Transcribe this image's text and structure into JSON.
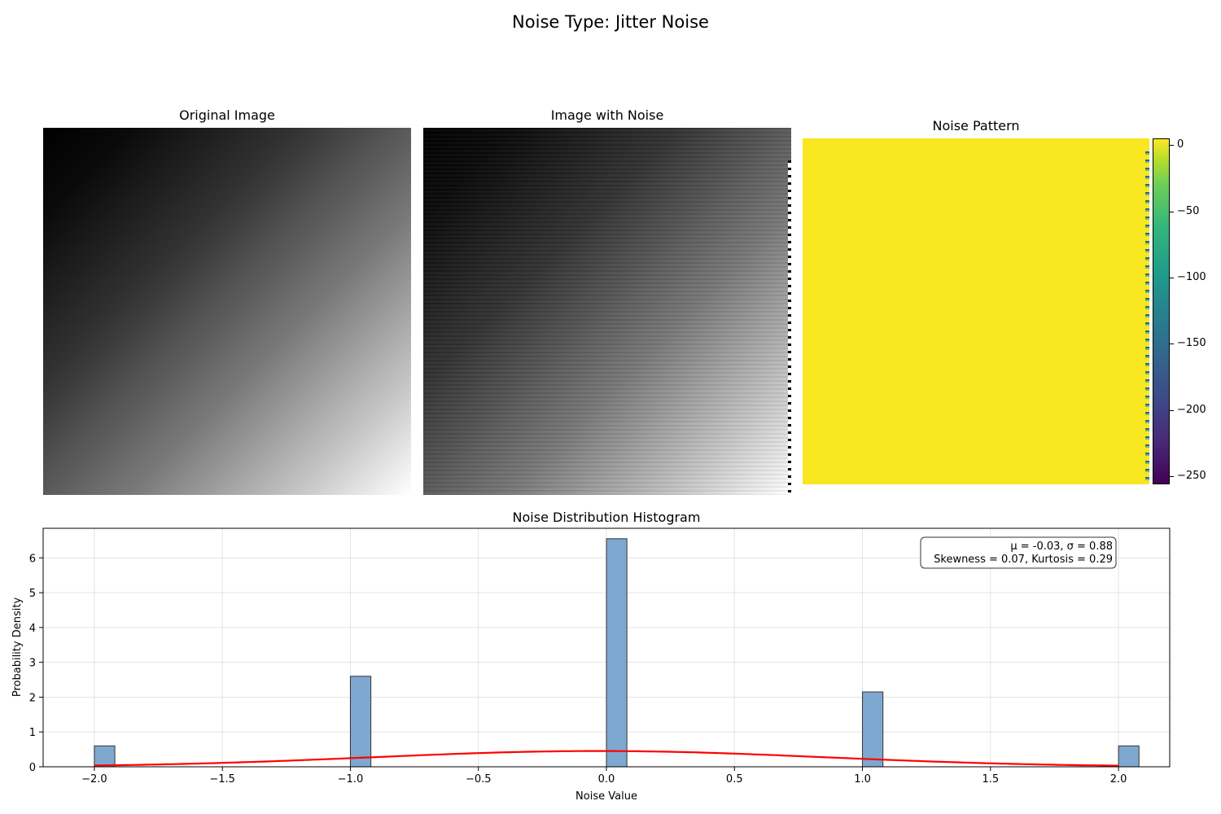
{
  "suptitle": "Noise Type: Jitter Noise",
  "panels": {
    "original_title": "Original Image",
    "noisy_title": "Image with Noise",
    "pattern_title": "Noise Pattern"
  },
  "colormap": "viridis",
  "colorbar": {
    "range": [
      -256,
      5
    ],
    "ticks": [
      "0",
      "−50",
      "−100",
      "−150",
      "−200",
      "−250"
    ],
    "tick_values": [
      0,
      -50,
      -100,
      -150,
      -200,
      -250
    ]
  },
  "chart_data": {
    "type": "bar",
    "title": "Noise Distribution Histogram",
    "xlabel": "Noise Value",
    "ylabel": "Probability Density",
    "xlim": [
      -2.2,
      2.2
    ],
    "ylim": [
      0,
      6.85
    ],
    "xticks": [
      -2.0,
      -1.5,
      -1.0,
      -0.5,
      0.0,
      0.5,
      1.0,
      1.5,
      2.0
    ],
    "xtick_labels": [
      "−2.0",
      "−1.5",
      "−1.0",
      "−0.5",
      "0.0",
      "0.5",
      "1.0",
      "1.5",
      "2.0"
    ],
    "yticks": [
      0,
      1,
      2,
      3,
      4,
      5,
      6
    ],
    "ytick_labels": [
      "0",
      "1",
      "2",
      "3",
      "4",
      "5",
      "6"
    ],
    "grid": true,
    "bin_width": 0.08,
    "bars": [
      {
        "x": -2.0,
        "value": 0.6
      },
      {
        "x": -1.0,
        "value": 2.6
      },
      {
        "x": 0.0,
        "value": 6.55
      },
      {
        "x": 1.0,
        "value": 2.15
      },
      {
        "x": 2.0,
        "value": 0.6
      }
    ],
    "bar_color": "#7ea8cf",
    "fit_curve": {
      "type": "normal",
      "mu": -0.03,
      "sigma": 0.88,
      "color": "#ff0000",
      "range": [
        -2.0,
        2.0
      ]
    },
    "stats_box": {
      "line1": "μ = -0.03, σ = 0.88",
      "line2": "Skewness = 0.07, Kurtosis = 0.29"
    }
  }
}
